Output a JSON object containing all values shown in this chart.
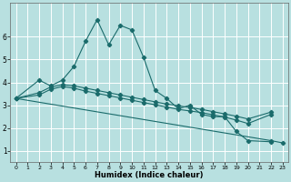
{
  "xlabel": "Humidex (Indice chaleur)",
  "background_color": "#b8e0e0",
  "grid_color": "#d0ecec",
  "line_color": "#1a6b6b",
  "xlim": [
    -0.5,
    23.5
  ],
  "ylim": [
    0.5,
    7.5
  ],
  "yticks": [
    1,
    2,
    3,
    4,
    5,
    6
  ],
  "xticks": [
    0,
    1,
    2,
    3,
    4,
    5,
    6,
    7,
    8,
    9,
    10,
    11,
    12,
    13,
    14,
    15,
    16,
    17,
    18,
    19,
    20,
    21,
    22,
    23
  ],
  "series": [
    {
      "x": [
        0,
        2,
        3,
        4,
        5,
        6,
        7,
        8,
        9,
        10,
        11,
        12,
        13,
        14,
        15,
        16,
        17,
        18,
        19,
        20,
        22
      ],
      "y": [
        3.3,
        4.1,
        3.85,
        4.1,
        4.7,
        5.8,
        6.75,
        5.65,
        6.5,
        6.3,
        5.1,
        3.65,
        3.3,
        2.85,
        3.0,
        2.6,
        2.5,
        2.5,
        1.85,
        1.45,
        1.4
      ]
    },
    {
      "x": [
        0,
        2,
        3,
        4,
        5,
        6,
        7,
        8,
        9,
        10,
        11,
        12,
        13,
        14,
        15,
        16,
        17,
        18,
        19,
        20,
        22
      ],
      "y": [
        3.3,
        3.55,
        3.8,
        3.9,
        3.85,
        3.75,
        3.65,
        3.55,
        3.45,
        3.35,
        3.25,
        3.15,
        3.05,
        2.98,
        2.9,
        2.82,
        2.72,
        2.62,
        2.52,
        2.4,
        2.7
      ]
    },
    {
      "x": [
        0,
        2,
        3,
        4,
        5,
        6,
        7,
        8,
        9,
        10,
        11,
        12,
        13,
        14,
        15,
        16,
        17,
        18,
        19,
        20,
        22
      ],
      "y": [
        3.3,
        3.45,
        3.7,
        3.82,
        3.75,
        3.62,
        3.52,
        3.42,
        3.32,
        3.22,
        3.12,
        3.02,
        2.92,
        2.82,
        2.75,
        2.68,
        2.58,
        2.48,
        2.35,
        2.2,
        2.6
      ]
    },
    {
      "x": [
        0,
        22,
        23
      ],
      "y": [
        3.3,
        1.45,
        1.35
      ]
    }
  ]
}
